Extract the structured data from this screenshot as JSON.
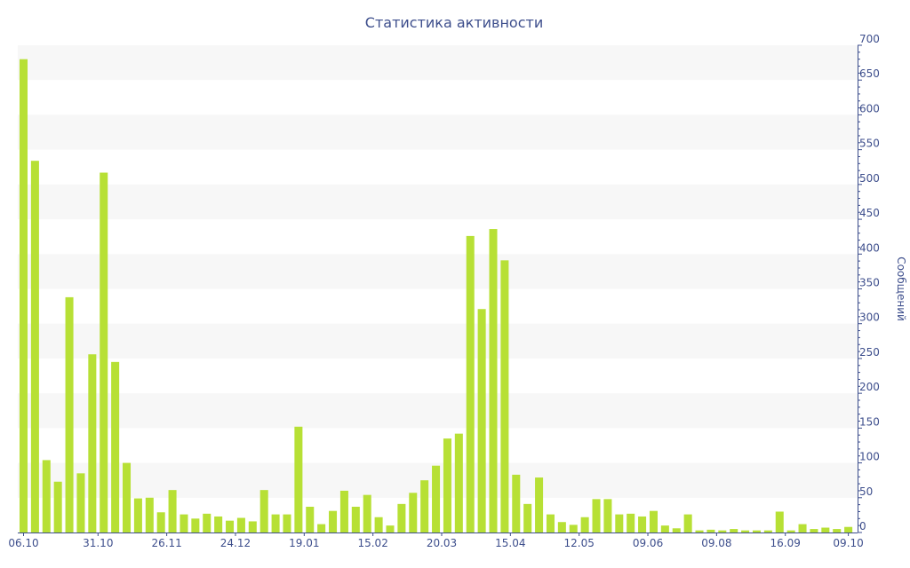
{
  "chart_data": {
    "type": "bar",
    "title": "Статистика активности",
    "xlabel": "",
    "ylabel": "Сообщений",
    "ylim": [
      0,
      700
    ],
    "yticks": [
      0,
      50,
      100,
      150,
      200,
      250,
      300,
      350,
      400,
      450,
      500,
      550,
      600,
      650,
      700
    ],
    "y_axis_side": "right",
    "x_tick_labels": [
      {
        "index": 0,
        "label": "06.10"
      },
      {
        "index": 6.5,
        "label": "31.10"
      },
      {
        "index": 12.5,
        "label": "26.11"
      },
      {
        "index": 18.5,
        "label": "24.12"
      },
      {
        "index": 24.5,
        "label": "19.01"
      },
      {
        "index": 30.5,
        "label": "15.02"
      },
      {
        "index": 36.5,
        "label": "20.03"
      },
      {
        "index": 42.5,
        "label": "15.04"
      },
      {
        "index": 48.5,
        "label": "12.05"
      },
      {
        "index": 54.5,
        "label": "09.06"
      },
      {
        "index": 60.5,
        "label": "09.08"
      },
      {
        "index": 66.5,
        "label": "16.09"
      },
      {
        "index": 72,
        "label": "09.10"
      }
    ],
    "values": [
      680,
      534,
      104,
      73,
      338,
      85,
      256,
      517,
      245,
      100,
      49,
      50,
      29,
      61,
      26,
      20,
      27,
      23,
      17,
      21,
      16,
      61,
      26,
      26,
      152,
      37,
      12,
      31,
      60,
      37,
      54,
      22,
      10,
      41,
      57,
      75,
      96,
      135,
      142,
      426,
      321,
      436,
      391,
      83,
      41,
      79,
      26,
      15,
      11,
      22,
      48,
      48,
      26,
      27,
      23,
      31,
      10,
      6,
      26,
      3,
      4,
      3,
      5,
      3,
      3,
      3,
      30,
      3,
      12,
      5,
      7,
      5,
      8
    ],
    "grid": "alternating-bands",
    "colors": {
      "bar": "#b7e035",
      "text": "#3d4e8c",
      "band": "#f7f7f7"
    }
  }
}
